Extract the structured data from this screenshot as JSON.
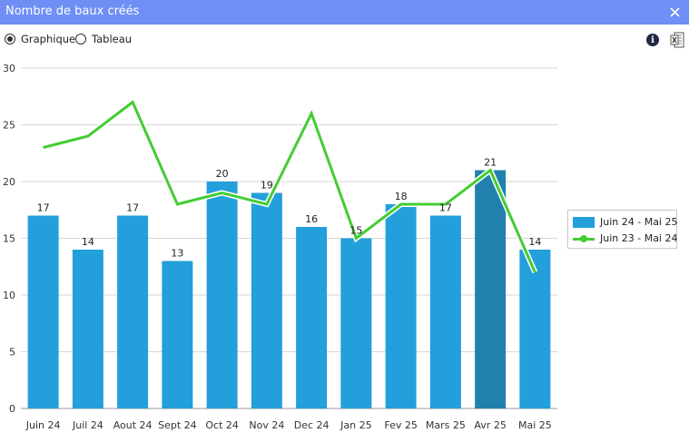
{
  "window": {
    "title": "Nombre de baux créés"
  },
  "view_options": {
    "chart_label": "Graphique",
    "table_label": "Tableau",
    "selected": "Graphique"
  },
  "colors": {
    "titlebar": "#6f8ff5",
    "bar": "#239fdb",
    "bar_highlight": "#2280ad",
    "line": "#44cc33"
  },
  "chart_data": {
    "type": "bar",
    "title": "Nombre de baux créés",
    "categories": [
      "Juin 24",
      "Juil 24",
      "Aout 24",
      "Sept 24",
      "Oct 24",
      "Nov 24",
      "Dec 24",
      "Jan 25",
      "Fev 25",
      "Mars 25",
      "Avr 25",
      "Mai 25"
    ],
    "ylim": [
      0,
      30
    ],
    "yticks": [
      0,
      5,
      10,
      15,
      20,
      25,
      30
    ],
    "grid": true,
    "legend_position": "right",
    "series": [
      {
        "name": "Juin 24 - Mai 25",
        "kind": "bar",
        "values": [
          17,
          14,
          17,
          13,
          20,
          19,
          16,
          15,
          18,
          17,
          21,
          14
        ],
        "highlighted_index": 10
      },
      {
        "name": "Juin 23 - Mai 24",
        "kind": "line",
        "values": [
          23,
          24,
          27,
          18,
          19,
          18,
          26,
          15,
          18,
          18,
          21,
          12
        ]
      }
    ]
  }
}
